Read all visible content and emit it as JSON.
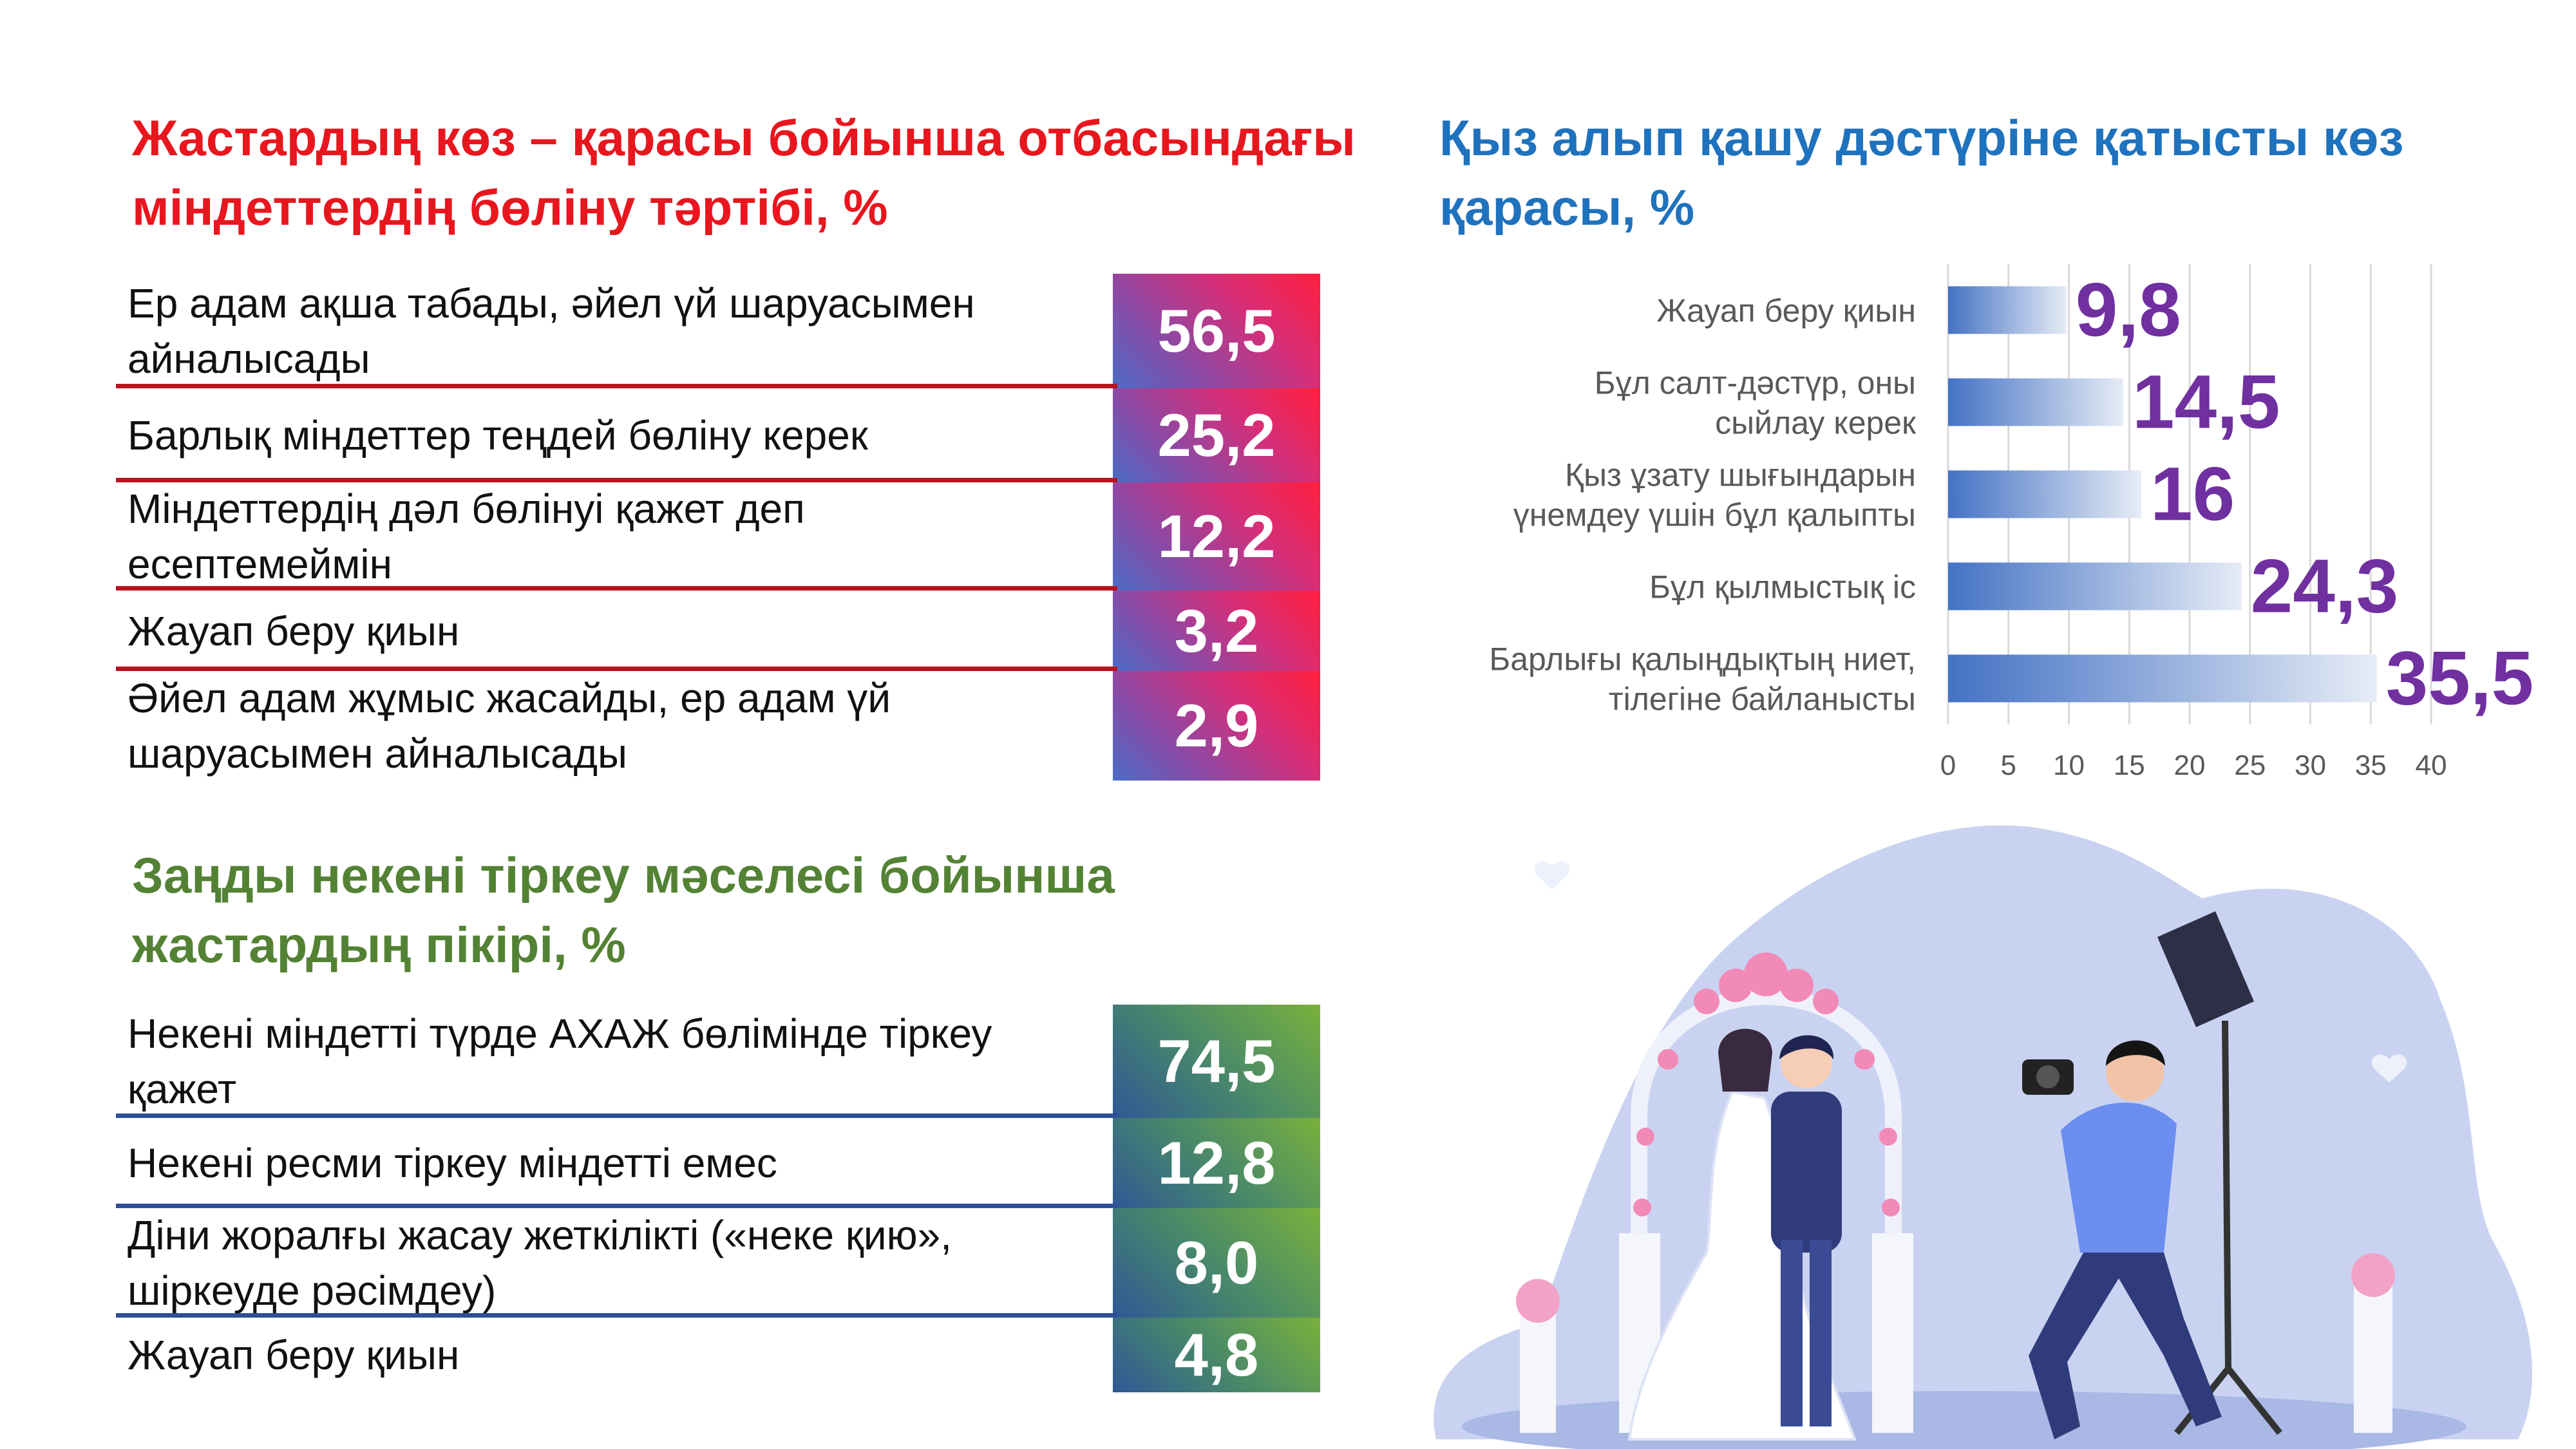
{
  "section1": {
    "title": "Жастардың көз – қарасы бойынша отбасындағы міндеттердің бөліну тәртібі, %",
    "rows": [
      {
        "label": "Ер адам ақша табады, әйел үй шаруасымен айналысады",
        "value": "56,5"
      },
      {
        "label": "Барлық міндеттер теңдей бөліну керек",
        "value": "25,2"
      },
      {
        "label": "Міндеттердің дәл бөлінуі қажет деп есептемеймін",
        "value": "12,2"
      },
      {
        "label": "Жауап беру қиын",
        "value": "3,2"
      },
      {
        "label": "Әйел адам жұмыс жасайды, ер адам үй шаруасымен айналысады",
        "value": "2,9"
      }
    ]
  },
  "section2": {
    "title": "Заңды некені тіркеу мәселесі бойынша жастардың пікірі, %",
    "rows": [
      {
        "label": "Некені міндетті түрде АХАЖ бөлімінде тіркеу қажет",
        "value": "74,5"
      },
      {
        "label": "Некені ресми тіркеу міндетті емес",
        "value": "12,8"
      },
      {
        "label": "Діни жоралғы жасау жеткілікті («неке қию», шіркеуде рәсімдеу)",
        "value": "8,0"
      },
      {
        "label": "Жауап беру қиын",
        "value": "4,8"
      }
    ]
  },
  "section3": {
    "title": "Қыз алып қашу дәстүріне қатысты көз қарасы, %"
  },
  "chart_data": {
    "type": "bar",
    "orientation": "horizontal",
    "categories": [
      "Жауап беру қиын",
      "Бұл салт-дәстүр, оны сыйлау керек",
      "Қыз ұзату шығындарын үнемдеу үшін бұл қалыпты",
      "Бұл қылмыстық іс",
      "Барлығы қалыңдықтың ниет, тілегіне байланысты"
    ],
    "values": [
      9.8,
      14.5,
      16,
      24.3,
      35.5
    ],
    "value_labels": [
      "9,8",
      "14,5",
      "16",
      "24,3",
      "35,5"
    ],
    "xlim": [
      0,
      40
    ],
    "xticks": [
      0,
      5,
      10,
      15,
      20,
      25,
      30,
      35,
      40
    ],
    "grid": true,
    "legend": "none",
    "colors": {
      "bar_start": "#4472c4",
      "bar_end": "#e6ecf6",
      "value_label": "#7030a0",
      "grid": "#d9d9d9",
      "category_label": "#595959"
    }
  }
}
